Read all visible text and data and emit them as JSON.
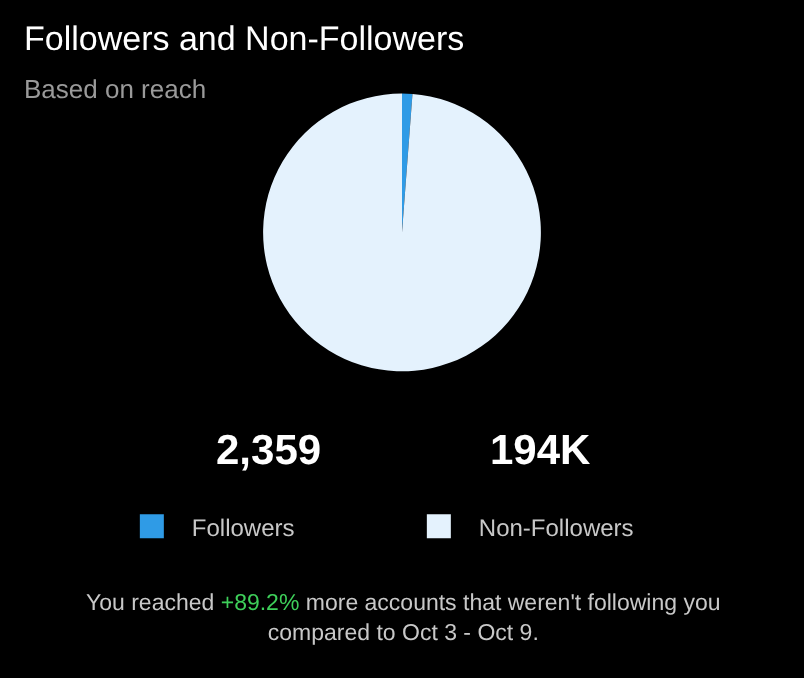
{
  "chart_data": {
    "type": "pie",
    "title": "Followers and Non-Followers",
    "subtitle": "Based on reach",
    "categories": [
      "Followers",
      "Non-Followers"
    ],
    "values": [
      2359,
      194000
    ],
    "value_labels": [
      "2,359",
      "194K"
    ],
    "colors": [
      "#2f9be6",
      "#e4f2fd"
    ],
    "legend": "bottom",
    "annotations": [
      "You reached +89.2% more accounts that weren't following you\ncompared to Oct 3 - Oct 9."
    ]
  }
}
